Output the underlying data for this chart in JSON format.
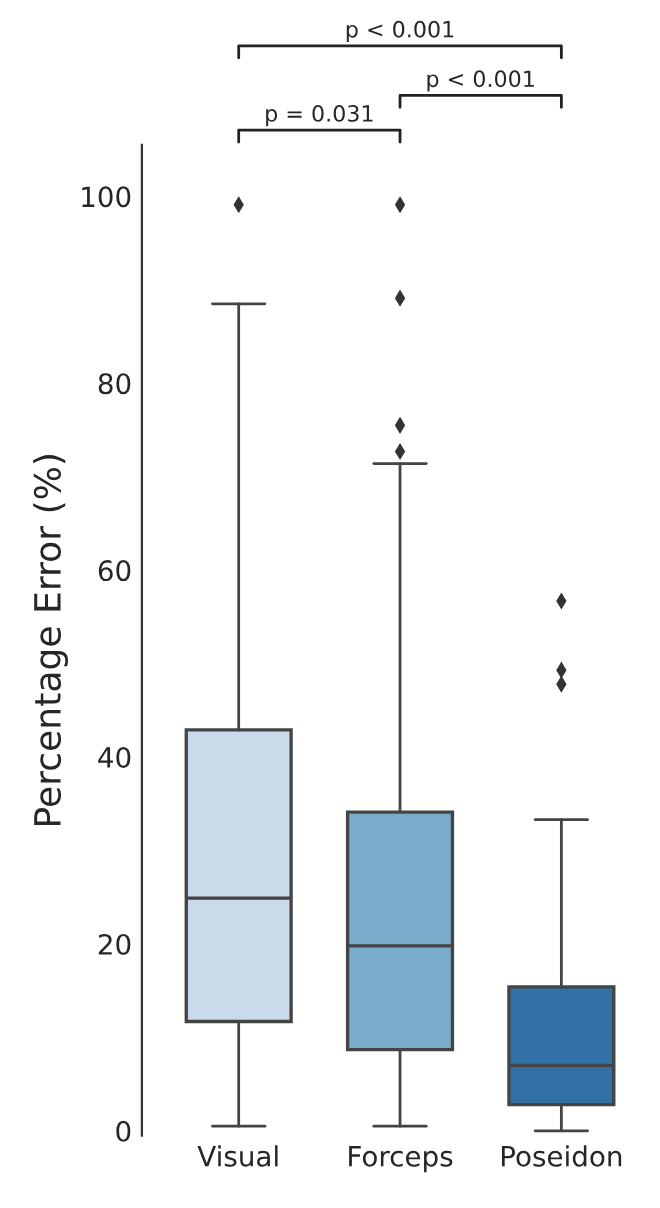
{
  "chart_data": {
    "type": "box",
    "ylabel": "Percentage Error (%)",
    "categories": [
      "Visual",
      "Forceps",
      "Poseidon"
    ],
    "colors": [
      "#c9dbeb",
      "#78acca",
      "#3270a6"
    ],
    "boxes": [
      {
        "low": 0.5,
        "q1": 11.7,
        "median": 24.9,
        "q3": 42.9,
        "high": 88.5,
        "outliers": [
          99.1
        ]
      },
      {
        "low": 0.5,
        "q1": 8.7,
        "median": 19.8,
        "q3": 34.1,
        "high": 71.4,
        "outliers": [
          99.1,
          89.1,
          75.5,
          72.7
        ]
      },
      {
        "low": 0.0,
        "q1": 2.8,
        "median": 7.0,
        "q3": 15.4,
        "high": 33.3,
        "outliers": [
          56.7,
          49.3,
          47.8
        ]
      }
    ],
    "ylim": [
      -0.5,
      105.5
    ],
    "yticks": [
      0,
      20,
      40,
      60,
      80,
      100
    ],
    "grid": false,
    "annotations": [
      "p = 0.031",
      "p < 0.001",
      "p < 0.001"
    ]
  }
}
